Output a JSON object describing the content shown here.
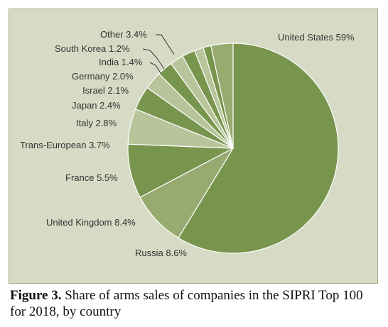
{
  "caption": {
    "label": "Figure 3.",
    "text": "Share of arms sales of companies in the SIPRI Top 100 for 2018, by country"
  },
  "colors": {
    "background": "#d7dbc5",
    "slice_fills": [
      "#78954d",
      "#97aa6f",
      "#78954d",
      "#b8c59a",
      "#78954d",
      "#b8c59a",
      "#78954d",
      "#b8c59a",
      "#78954d",
      "#b8c59a",
      "#78954d",
      "#97aa6f"
    ],
    "slice_stroke": "#ffffff"
  },
  "chart_data": {
    "type": "pie",
    "title": "",
    "slices": [
      {
        "label": "United States",
        "value": 59,
        "display": "United States 59%"
      },
      {
        "label": "Russia",
        "value": 8.6,
        "display": "Russia 8.6%"
      },
      {
        "label": "United Kingdom",
        "value": 8.4,
        "display": "United Kingdom 8.4%"
      },
      {
        "label": "France",
        "value": 5.5,
        "display": "France 5.5%"
      },
      {
        "label": "Trans-European",
        "value": 3.7,
        "display": "Trans-European 3.7%"
      },
      {
        "label": "Italy",
        "value": 2.8,
        "display": "Italy 2.8%"
      },
      {
        "label": "Japan",
        "value": 2.4,
        "display": "Japan 2.4%"
      },
      {
        "label": "Israel",
        "value": 2.1,
        "display": "Israel 2.1%"
      },
      {
        "label": "Germany",
        "value": 2.0,
        "display": "Germany 2.0%"
      },
      {
        "label": "India",
        "value": 1.4,
        "display": "India 1.4%"
      },
      {
        "label": "South Korea",
        "value": 1.2,
        "display": "South Korea 1.2%"
      },
      {
        "label": "Other",
        "value": 3.4,
        "display": "Other 3.4%"
      }
    ],
    "start_angle_deg": 0,
    "direction": "clockwise",
    "legend": "none",
    "labels": "outside"
  }
}
